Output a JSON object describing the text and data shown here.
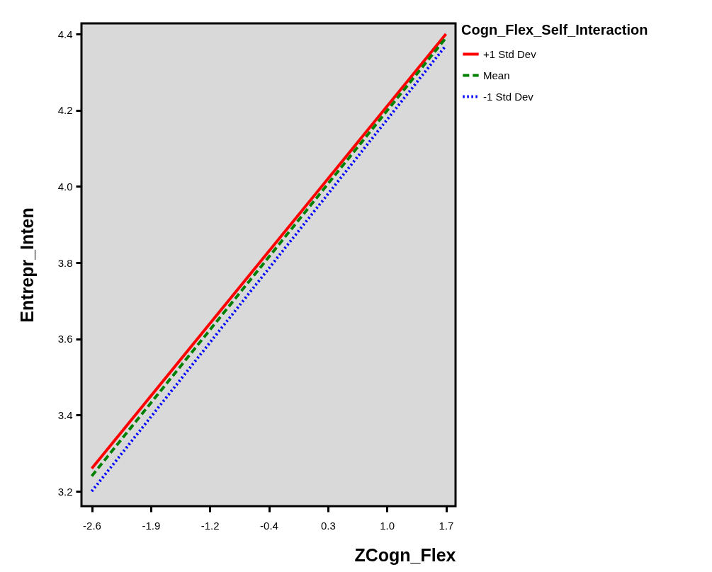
{
  "chart_data": {
    "type": "line",
    "xlabel": "ZCogn_Flex",
    "ylabel": "Entrepr_Inten",
    "legend_title": "Cogn_Flex_Self_Interaction",
    "legend": "top right",
    "grid": false,
    "x": [
      -2.6,
      1.7
    ],
    "series": [
      {
        "name": "+1 Std Dev",
        "color": "#ff0000",
        "line_style": "solid",
        "values": [
          3.26,
          4.4
        ]
      },
      {
        "name": "Mean",
        "color": "#008000",
        "line_style": "dashed",
        "values": [
          3.24,
          4.39
        ]
      },
      {
        "name": "-1 Std Dev",
        "color": "#0000ff",
        "line_style": "dotted",
        "values": [
          3.2,
          4.37
        ]
      }
    ],
    "xlim": [
      -2.725,
      1.816
    ],
    "ylim": [
      3.161,
      4.428
    ],
    "xticks": [
      {
        "value": -2.6,
        "label": "-2.6"
      },
      {
        "value": -1.883,
        "label": "-1.9"
      },
      {
        "value": -1.167,
        "label": "-1.2"
      },
      {
        "value": -0.45,
        "label": "-0.4"
      },
      {
        "value": 0.267,
        "label": "0.3"
      },
      {
        "value": 0.983,
        "label": "1.0"
      },
      {
        "value": 1.7,
        "label": "1.7"
      }
    ],
    "yticks": [
      {
        "value": 3.2,
        "label": "3.2"
      },
      {
        "value": 3.4,
        "label": "3.4"
      },
      {
        "value": 3.6,
        "label": "3.6"
      },
      {
        "value": 3.8,
        "label": "3.8"
      },
      {
        "value": 4.0,
        "label": "4.0"
      },
      {
        "value": 4.2,
        "label": "4.2"
      },
      {
        "value": 4.4,
        "label": "4.4"
      }
    ]
  }
}
